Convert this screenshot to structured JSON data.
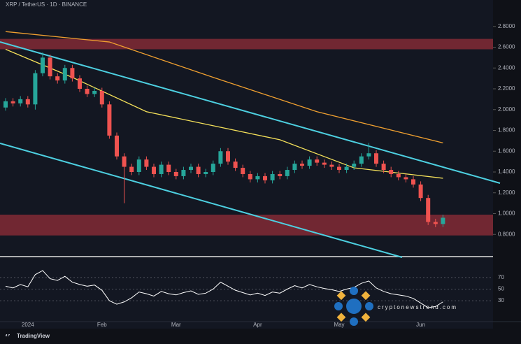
{
  "chart_data": {
    "type": "candlestick",
    "title": "XRP / TetherUS · 1D · BINANCE",
    "watermark": "cryptonewstrend.com",
    "brand": "TradingView",
    "categories": [
      null,
      null,
      null,
      "2024",
      null,
      null,
      null,
      null,
      null,
      null,
      null,
      null,
      null,
      "Feb",
      null,
      null,
      null,
      null,
      null,
      null,
      null,
      null,
      null,
      "Mar",
      null,
      null,
      null,
      null,
      null,
      null,
      null,
      null,
      null,
      null,
      "Apr",
      null,
      null,
      null,
      null,
      null,
      null,
      null,
      null,
      null,
      null,
      "May",
      null,
      null,
      null,
      null,
      null,
      null,
      null,
      null,
      null,
      null,
      "Jun",
      null,
      null,
      null
    ],
    "open": [
      2.02,
      2.08,
      2.06,
      2.1,
      2.05,
      2.35,
      2.5,
      2.32,
      2.28,
      2.4,
      2.3,
      2.2,
      2.15,
      2.18,
      2.05,
      1.75,
      1.55,
      1.45,
      1.4,
      1.52,
      1.45,
      1.38,
      1.47,
      1.4,
      1.36,
      1.42,
      1.45,
      1.38,
      1.4,
      1.48,
      1.6,
      1.5,
      1.44,
      1.38,
      1.33,
      1.36,
      1.32,
      1.38,
      1.36,
      1.42,
      1.48,
      1.46,
      1.52,
      1.49,
      1.47,
      1.45,
      1.42,
      1.45,
      1.48,
      1.55,
      1.58,
      1.48,
      1.42,
      1.38,
      1.35,
      1.33,
      1.28,
      1.15,
      0.92,
      0.9
    ],
    "high": [
      2.11,
      2.11,
      2.13,
      2.13,
      2.38,
      2.55,
      2.53,
      2.35,
      2.43,
      2.43,
      2.33,
      2.23,
      2.21,
      2.21,
      2.08,
      1.78,
      1.58,
      1.48,
      1.55,
      1.55,
      1.48,
      1.5,
      1.5,
      1.43,
      1.45,
      1.48,
      1.48,
      1.43,
      1.51,
      1.63,
      1.63,
      1.53,
      1.47,
      1.41,
      1.39,
      1.39,
      1.41,
      1.41,
      1.45,
      1.51,
      1.51,
      1.55,
      1.55,
      1.52,
      1.5,
      1.48,
      1.48,
      1.51,
      1.58,
      1.68,
      1.61,
      1.51,
      1.45,
      1.41,
      1.38,
      1.36,
      1.31,
      1.18,
      0.95,
      0.99
    ],
    "low": [
      1.99,
      2.03,
      2.03,
      2.02,
      2.0,
      2.32,
      2.29,
      2.25,
      2.25,
      2.27,
      2.17,
      2.12,
      2.12,
      2.02,
      1.72,
      1.52,
      1.1,
      1.37,
      1.37,
      1.42,
      1.35,
      1.35,
      1.37,
      1.33,
      1.33,
      1.39,
      1.35,
      1.35,
      1.37,
      1.45,
      1.47,
      1.41,
      1.35,
      1.3,
      1.3,
      1.29,
      1.29,
      1.33,
      1.33,
      1.39,
      1.43,
      1.43,
      1.46,
      1.44,
      1.42,
      1.39,
      1.39,
      1.42,
      1.45,
      1.52,
      1.45,
      1.39,
      1.35,
      1.32,
      1.3,
      1.25,
      1.12,
      0.89,
      0.87,
      0.87
    ],
    "close": [
      2.08,
      2.06,
      2.1,
      2.05,
      2.35,
      2.5,
      2.32,
      2.28,
      2.4,
      2.3,
      2.2,
      2.15,
      2.18,
      2.05,
      1.75,
      1.55,
      1.45,
      1.4,
      1.52,
      1.45,
      1.38,
      1.47,
      1.4,
      1.36,
      1.42,
      1.45,
      1.38,
      1.4,
      1.48,
      1.6,
      1.5,
      1.44,
      1.38,
      1.33,
      1.36,
      1.32,
      1.38,
      1.36,
      1.42,
      1.48,
      1.46,
      1.52,
      1.49,
      1.47,
      1.45,
      1.42,
      1.45,
      1.48,
      1.55,
      1.58,
      1.48,
      1.42,
      1.38,
      1.35,
      1.33,
      1.28,
      1.15,
      0.92,
      0.9,
      0.96
    ],
    "up_color": "#26a69a",
    "down_color": "#ef5350",
    "series": [
      {
        "color": "#f0a030",
        "x": [
          0,
          14,
          28,
          42,
          59
        ],
        "values": [
          2.75,
          2.65,
          2.31,
          1.98,
          1.68
        ]
      },
      {
        "color": "#f5e15a",
        "x": [
          0,
          9,
          19,
          37,
          47,
          59
        ],
        "values": [
          2.58,
          2.31,
          1.98,
          1.71,
          1.44,
          1.34
        ]
      }
    ],
    "zones": [
      {
        "color": "#b0323e",
        "range": [
          2.58,
          2.68
        ]
      },
      {
        "color": "#b0323e",
        "range": [
          0.79,
          0.99
        ]
      }
    ],
    "ylim": [
      0.6,
      3.0
    ],
    "yticks": [
      {
        "value": 0.8,
        "label": "0.8000"
      },
      {
        "value": 1.0,
        "label": "1.0000"
      },
      {
        "value": 1.2,
        "label": "1.2000"
      },
      {
        "value": 1.4,
        "label": "1.4000"
      },
      {
        "value": 1.6,
        "label": "1.6000"
      },
      {
        "value": 1.8,
        "label": "1.8000"
      },
      {
        "value": 2.0,
        "label": "2.0000"
      },
      {
        "value": 2.2,
        "label": "2.2000"
      },
      {
        "value": 2.4,
        "label": "2.4000"
      },
      {
        "value": 2.6,
        "label": "2.6000"
      },
      {
        "value": 2.8,
        "label": "2.8000"
      }
    ],
    "rsi": {
      "color": "#ffffff",
      "values": [
        55,
        52,
        58,
        54,
        75,
        82,
        68,
        65,
        72,
        62,
        58,
        55,
        57,
        48,
        30,
        24,
        28,
        35,
        45,
        42,
        38,
        46,
        42,
        40,
        44,
        47,
        41,
        43,
        50,
        62,
        55,
        48,
        44,
        40,
        43,
        39,
        45,
        43,
        50,
        56,
        52,
        58,
        54,
        51,
        49,
        46,
        50,
        53,
        60,
        64,
        52,
        46,
        42,
        40,
        38,
        34,
        26,
        18,
        20,
        28
      ],
      "ylim": [
        0,
        100
      ],
      "yticks": [
        30,
        50,
        70
      ]
    }
  }
}
